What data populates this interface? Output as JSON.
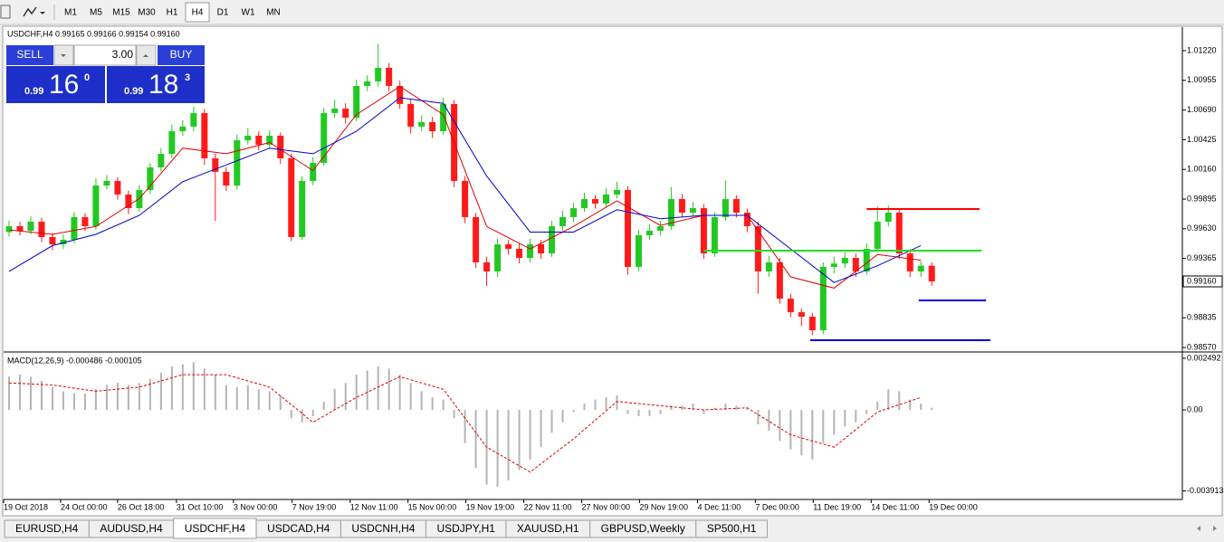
{
  "toolbar": {
    "timeframes": [
      "M1",
      "M5",
      "M15",
      "M30",
      "H1",
      "H4",
      "D1",
      "W1",
      "MN"
    ],
    "active_index": 5
  },
  "trade_panel": {
    "sell_label": "SELL",
    "buy_label": "BUY",
    "volume": "3.00",
    "bid": {
      "prefix": "0.99",
      "big": "16",
      "small": "0"
    },
    "ask": {
      "prefix": "0.99",
      "big": "18",
      "small": "3"
    }
  },
  "chart_data": [
    {
      "type": "candlestick",
      "title": "USDCHF,H4 0.99165 0.99166 0.99154 0.99160",
      "up_color": "#22c922",
      "down_color": "#ff1a1a",
      "open": [
        0.996,
        0.99653,
        0.99612,
        0.99693,
        0.99556,
        0.99491,
        0.99532,
        0.99734,
        0.99653,
        1.00016,
        1.00057,
        0.99936,
        0.99814,
        0.99976,
        1.00178,
        1.00299,
        1.00501,
        1.00542,
        1.00663,
        1.00259,
        1.00138,
        1.00016,
        1.0042,
        1.00461,
        1.0038,
        1.00461,
        1.00259,
        0.99556,
        1.00057,
        1.00218,
        1.00663,
        1.00703,
        1.00622,
        1.00905,
        1.00946,
        1.01067,
        1.00905,
        1.00744,
        1.00542,
        1.00582,
        1.00501,
        1.00744,
        1.00057,
        0.99734,
        0.9933,
        0.99249,
        0.99491,
        0.99451,
        0.9937,
        0.99491,
        0.9941,
        0.99653,
        0.99734,
        0.99814,
        0.99895,
        0.99855,
        0.99936,
        0.99976,
        0.99289,
        0.99572,
        0.99612,
        0.99653,
        0.99895,
        0.99774,
        0.99814,
        0.9941,
        0.99734,
        0.99895,
        0.99774,
        0.99653,
        0.99249,
        0.9933,
        0.99006,
        0.98885,
        0.98845,
        0.98724,
        0.99289,
        0.9932,
        0.9937,
        0.99249,
        0.99451,
        0.99693,
        0.99774,
        0.9941,
        0.99249,
        0.993
      ],
      "high": [
        0.997,
        0.9969,
        0.9974,
        0.9973,
        0.9959,
        0.9958,
        0.9978,
        0.9977,
        1.0008,
        1.0011,
        1.0009,
        0.9997,
        1.0002,
        1.0022,
        1.0035,
        1.0056,
        1.006,
        1.0072,
        1.007,
        1.003,
        1.0018,
        1.0047,
        1.0053,
        1.005,
        1.0051,
        1.0049,
        1.003,
        1.001,
        1.0027,
        1.0071,
        1.0078,
        1.0075,
        1.0096,
        1.01,
        1.0128,
        1.0111,
        1.0095,
        1.0079,
        1.0064,
        1.0063,
        1.008,
        1.0078,
        1.001,
        0.9977,
        0.9938,
        0.9954,
        0.9953,
        0.995,
        0.9954,
        0.9953,
        0.997,
        0.9979,
        0.9986,
        0.9995,
        0.9993,
        0.9999,
        1.0005,
        1.0001,
        0.9962,
        0.9967,
        0.997,
        1.0,
        0.9994,
        0.9987,
        0.9985,
        0.9978,
        1.0006,
        0.9993,
        0.9981,
        0.9969,
        0.9939,
        0.9937,
        0.9905,
        0.9892,
        0.9888,
        0.9933,
        0.9938,
        0.9942,
        0.9941,
        0.995,
        0.9983,
        0.9984,
        0.998,
        0.9945,
        0.9934,
        0.9933
      ],
      "low": [
        0.9956,
        0.9957,
        0.9958,
        0.9951,
        0.9944,
        0.9945,
        0.995,
        0.9961,
        0.9962,
        0.9998,
        0.9989,
        0.9976,
        0.9978,
        0.9994,
        1.0014,
        1.0026,
        1.0046,
        1.005,
        1.002,
        0.997,
        0.9997,
        0.9998,
        1.0038,
        1.0033,
        1.0034,
        1.0021,
        0.9952,
        0.9953,
        1.0002,
        1.0019,
        1.0062,
        1.0057,
        1.0059,
        1.0086,
        1.009,
        1.0086,
        1.007,
        1.0048,
        1.005,
        1.0044,
        1.0047,
        1.0,
        0.9968,
        0.9928,
        0.9912,
        0.992,
        0.994,
        0.9932,
        0.9933,
        0.9936,
        0.9938,
        0.9961,
        0.9969,
        0.9978,
        0.9981,
        0.9982,
        0.999,
        0.9922,
        0.9925,
        0.9953,
        0.9957,
        0.9962,
        0.9973,
        0.9974,
        0.9936,
        0.9938,
        0.997,
        0.9973,
        0.996,
        0.9905,
        0.992,
        0.9896,
        0.9884,
        0.9876,
        0.9868,
        0.9869,
        0.9923,
        0.9928,
        0.992,
        0.9922,
        0.9942,
        0.9965,
        0.9936,
        0.992,
        0.992,
        0.9912
      ],
      "close": [
        0.99653,
        0.99612,
        0.99693,
        0.99556,
        0.99491,
        0.99532,
        0.99734,
        0.99653,
        1.00016,
        1.00057,
        0.99936,
        0.99814,
        0.99976,
        1.00178,
        1.00299,
        1.00501,
        1.00542,
        1.00663,
        1.00259,
        1.00138,
        1.00016,
        1.0042,
        1.00461,
        1.0038,
        1.00461,
        1.00259,
        0.99556,
        1.00057,
        1.00218,
        1.00663,
        1.00703,
        1.00622,
        1.00905,
        1.00946,
        1.01067,
        1.00905,
        1.00744,
        1.00542,
        1.00582,
        1.00501,
        1.00744,
        1.00057,
        0.99734,
        0.9933,
        0.99249,
        0.99491,
        0.99451,
        0.9937,
        0.99491,
        0.9941,
        0.99653,
        0.99734,
        0.99814,
        0.99895,
        0.99855,
        0.99936,
        0.99976,
        0.99289,
        0.99572,
        0.99612,
        0.99653,
        0.99895,
        0.99774,
        0.99814,
        0.9941,
        0.99734,
        0.99895,
        0.99774,
        0.99653,
        0.99249,
        0.9933,
        0.99006,
        0.98885,
        0.98845,
        0.98724,
        0.99289,
        0.9932,
        0.9937,
        0.99249,
        0.99451,
        0.99693,
        0.99774,
        0.9941,
        0.99249,
        0.993,
        0.9916
      ],
      "moving_averages": [
        {
          "color": "#e00000",
          "x": [
            0,
            4,
            8,
            12,
            16,
            20,
            24,
            28,
            32,
            36,
            40,
            44,
            48,
            52,
            56,
            60,
            64,
            68,
            72,
            76,
            80,
            84
          ],
          "values": [
            0.9962,
            0.9958,
            0.9965,
            0.999,
            1.0035,
            1.003,
            1.004,
            1.0015,
            1.0065,
            1.009,
            1.0065,
            0.9965,
            0.9945,
            0.9965,
            0.9988,
            0.9966,
            0.9975,
            0.9975,
            0.992,
            0.991,
            0.994,
            0.9935
          ]
        },
        {
          "color": "#0000c8",
          "x": [
            0,
            4,
            8,
            12,
            16,
            20,
            24,
            28,
            32,
            36,
            40,
            44,
            48,
            52,
            56,
            60,
            64,
            68,
            72,
            76,
            80,
            84
          ],
          "values": [
            0.9925,
            0.9948,
            0.9958,
            0.9975,
            1.0005,
            1.002,
            1.0035,
            1.003,
            1.005,
            1.008,
            1.0075,
            1.001,
            0.996,
            0.996,
            0.998,
            0.9972,
            0.9975,
            0.9975,
            0.9945,
            0.9915,
            0.993,
            0.9948
          ]
        }
      ],
      "levels": [
        {
          "color": "#ff0000",
          "value": 0.99806,
          "x": [
            79,
            89.4
          ]
        },
        {
          "color": "#22dd22",
          "value": 0.99435,
          "x": [
            64,
            89.6
          ]
        },
        {
          "color": "#0000cc",
          "value": 0.9899,
          "x": [
            83.8,
            90
          ]
        },
        {
          "color": "#0000cc",
          "value": 0.98635,
          "x": [
            73.8,
            90.4
          ]
        }
      ],
      "last_price": {
        "value": 0.9916,
        "label": "0.99160"
      },
      "xlim": [
        -0.5,
        108
      ],
      "ylim": [
        0.98546,
        1.01422
      ],
      "yticks": [
        {
          "value": 1.0122,
          "label": "1.01220"
        },
        {
          "value": 1.00955,
          "label": "1.00955"
        },
        {
          "value": 1.0069,
          "label": "1.00690"
        },
        {
          "value": 1.00425,
          "label": "1.00425"
        },
        {
          "value": 1.0016,
          "label": "1.00160"
        },
        {
          "value": 0.99895,
          "label": "0.99895"
        },
        {
          "value": 0.9963,
          "label": "0.99630"
        },
        {
          "value": 0.99365,
          "label": "0.99365"
        },
        {
          "value": 0.98835,
          "label": "0.98835"
        },
        {
          "value": 0.9857,
          "label": "0.98570"
        }
      ]
    },
    {
      "type": "macd",
      "title": "MACD(12,26,9) -0.000486 -0.000105",
      "histogram_color": "#b4b4b4",
      "histogram": [
        0.0016,
        0.0017,
        0.0016,
        0.0014,
        0.0011,
        0.0009,
        0.0008,
        0.0008,
        0.001,
        0.0012,
        0.0013,
        0.0012,
        0.0013,
        0.0015,
        0.0018,
        0.0021,
        0.0022,
        0.0023,
        0.002,
        0.0017,
        0.0012,
        0.0011,
        0.0012,
        0.001,
        0.0009,
        0.0007,
        -0.0004,
        -0.0006,
        -0.0003,
        0.0004,
        0.001,
        0.0013,
        0.0017,
        0.0019,
        0.0021,
        0.002,
        0.0017,
        0.0013,
        0.0009,
        0.0006,
        0.0005,
        -0.0004,
        -0.0016,
        -0.0028,
        -0.0036,
        -0.0037,
        -0.0034,
        -0.0029,
        -0.0024,
        -0.0018,
        -0.0011,
        -0.0006,
        -0.0001,
        0.0003,
        0.0005,
        0.0006,
        0.0007,
        -0.0002,
        -0.0003,
        -0.0003,
        -0.0002,
        0.0002,
        0.0002,
        0.0003,
        -0.0002,
        0.0001,
        0.0003,
        0.0002,
        0.0001,
        -0.0007,
        -0.001,
        -0.0015,
        -0.0019,
        -0.0022,
        -0.0024,
        -0.0016,
        -0.0012,
        -0.0008,
        -0.0006,
        -0.0002,
        0.0004,
        0.001,
        0.0009,
        0.0005,
        0.0003,
        0.0001
      ],
      "signal": {
        "color": "#e00000",
        "x": [
          0,
          4,
          8,
          12,
          16,
          20,
          24,
          28,
          32,
          36,
          40,
          44,
          48,
          52,
          56,
          60,
          64,
          68,
          72,
          76,
          80,
          84
        ],
        "values": [
          0.0013,
          0.0012,
          0.0009,
          0.0011,
          0.0017,
          0.0017,
          0.0011,
          -0.0006,
          0.0006,
          0.0016,
          0.001,
          -0.0018,
          -0.003,
          -0.0014,
          0.0004,
          0.0002,
          0.0,
          0.0001,
          -0.0012,
          -0.0018,
          -0.0001,
          0.0006
        ]
      },
      "xlim": [
        -0.5,
        108
      ],
      "ylim": [
        -0.00428,
        0.002707
      ],
      "yticks": [
        0.002492,
        {
          "value": 0,
          "label": "0.00"
        },
        -0.003913
      ],
      "xticks": [
        {
          "value": -0.5,
          "label": "19 Oct 2018"
        },
        {
          "value": 4.75,
          "label": "24 Oct 00:00"
        },
        {
          "value": 10,
          "label": "26 Oct 18:00"
        },
        {
          "value": 15.42,
          "label": "31 Oct 10:00"
        },
        {
          "value": 20.67,
          "label": "3 Nov 00:00"
        },
        {
          "value": 26.08,
          "label": "7 Nov 19:00"
        },
        {
          "value": 31.42,
          "label": "12 Nov 11:00"
        },
        {
          "value": 36.75,
          "label": "15 Nov 00:00"
        },
        {
          "value": 42.08,
          "label": "19 Nov 19:00"
        },
        {
          "value": 47.42,
          "label": "22 Nov 11:00"
        },
        {
          "value": 52.75,
          "label": "27 Nov 00:00"
        },
        {
          "value": 58.08,
          "label": "29 Nov 19:00"
        },
        {
          "value": 63.42,
          "label": "4 Dec 11:00"
        },
        {
          "value": 68.75,
          "label": "7 Dec 00:00"
        },
        {
          "value": 74.08,
          "label": "11 Dec 19:00"
        },
        {
          "value": 79.42,
          "label": "14 Dec 11:00"
        },
        {
          "value": 84.75,
          "label": "19 Dec 00:00"
        }
      ]
    }
  ],
  "tabs": {
    "items": [
      "EURUSD,H4",
      "AUDUSD,H4",
      "USDCHF,H4",
      "USDCAD,H4",
      "USDCNH,H4",
      "USDJPY,H1",
      "XAUUSD,H1",
      "GBPUSD,Weekly",
      "SP500,H1"
    ],
    "active_index": 2
  }
}
